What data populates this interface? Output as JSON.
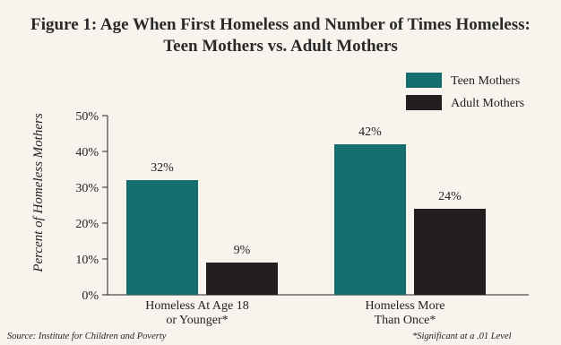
{
  "chart_data": {
    "type": "bar",
    "title_line1": "Figure 1: Age When First Homeless and Number of Times Homeless:",
    "title_line2": "Teen Mothers vs. Adult Mothers",
    "ylabel": "Percent of Homeless Mothers",
    "xlabel": "",
    "categories": [
      [
        "Homeless At Age 18",
        "or Younger*"
      ],
      [
        "Homeless More",
        "Than Once*"
      ]
    ],
    "series": [
      {
        "name": "Teen Mothers",
        "values": [
          32,
          42
        ],
        "labels": [
          "32%",
          "42%"
        ],
        "color": "#166d6d"
      },
      {
        "name": "Adult Mothers",
        "values": [
          9,
          24
        ],
        "labels": [
          "9%",
          "24%"
        ],
        "color": "#231f20"
      }
    ],
    "ylim": [
      0,
      50
    ],
    "yticks": [
      0,
      10,
      20,
      30,
      40,
      50
    ],
    "ytick_labels": [
      "0%",
      "10%",
      "20%",
      "30%",
      "40%",
      "50%"
    ],
    "grid": false,
    "legend_position": "top-right"
  },
  "footer": {
    "source": "Source:  Institute for Children and Poverty",
    "note": "*Significant at a .01 Level"
  },
  "colors": {
    "background": "#f9f3ee",
    "teen": "#166d6d",
    "adult": "#231f20"
  }
}
